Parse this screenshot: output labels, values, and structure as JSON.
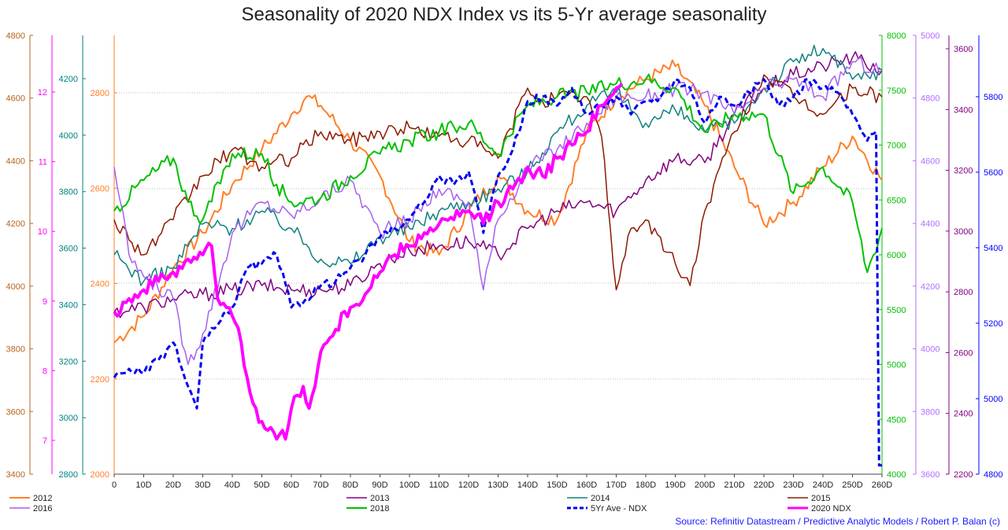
{
  "chart_data": {
    "type": "line",
    "title": "Seasonality of 2020 NDX Index vs its 5-Yr average seasonality",
    "source": "Source: Refinitiv Datastream / Predictive Analytic Models / Robert P. Balan (c)",
    "xlabel": "",
    "xlim": [
      0,
      260
    ],
    "x_ticks": [
      "0",
      "10D",
      "20D",
      "30D",
      "40D",
      "50D",
      "60D",
      "70D",
      "80D",
      "90D",
      "100D",
      "110D",
      "120D",
      "130D",
      "140D",
      "150D",
      "160D",
      "170D",
      "180D",
      "190D",
      "200D",
      "210D",
      "220D",
      "230D",
      "240D",
      "250D",
      "260D"
    ],
    "grid": "horizontal dotted",
    "legend_position": "bottom",
    "axes": [
      {
        "id": "a2012",
        "side": "left",
        "color": "#b5651d",
        "ticks": [
          "3400",
          "3600",
          "3800",
          "4000",
          "4200",
          "4400",
          "4600",
          "4800"
        ]
      },
      {
        "id": "a2016",
        "side": "left",
        "color": "#ff00ff",
        "ticks": [
          "7",
          "8",
          "9",
          "10",
          "11",
          "12"
        ]
      },
      {
        "id": "a2014",
        "side": "left",
        "color": "#008080",
        "ticks": [
          "2800",
          "3000",
          "3200",
          "3400",
          "3600",
          "3800",
          "4000",
          "4200"
        ]
      },
      {
        "id": "a2020",
        "side": "left",
        "color": "#ff7f27",
        "ticks": [
          "2000",
          "2200",
          "2400",
          "2600",
          "2800"
        ]
      },
      {
        "id": "a2018",
        "side": "right",
        "color": "#00c000",
        "ticks": [
          "4000",
          "4500",
          "5000",
          "5500",
          "6000",
          "6500",
          "7000",
          "7500",
          "8000"
        ]
      },
      {
        "id": "a2013",
        "side": "right",
        "color": "#b070ff",
        "ticks": [
          "3600",
          "3800",
          "4000",
          "4200",
          "4400",
          "4600",
          "4800",
          "5000"
        ]
      },
      {
        "id": "a2015",
        "side": "right",
        "color": "#800080",
        "ticks": [
          "2200",
          "2400",
          "2600",
          "2800",
          "3000",
          "3200",
          "3400",
          "3600"
        ]
      },
      {
        "id": "a5yr",
        "side": "right",
        "color": "#0000ff",
        "ticks": [
          "4800",
          "5000",
          "5200",
          "5400",
          "5600",
          "5800"
        ]
      }
    ],
    "series": [
      {
        "name": "2012",
        "color": "#ff7f27",
        "style": "solid",
        "width": 2,
        "x": [
          0,
          10,
          20,
          30,
          40,
          50,
          60,
          65,
          70,
          80,
          90,
          100,
          110,
          120,
          130,
          140,
          150,
          160,
          170,
          180,
          190,
          200,
          210,
          220,
          230,
          240,
          250,
          260
        ],
        "y": [
          0.3,
          0.36,
          0.47,
          0.55,
          0.66,
          0.74,
          0.82,
          0.86,
          0.84,
          0.76,
          0.68,
          0.53,
          0.5,
          0.6,
          0.68,
          0.6,
          0.58,
          0.78,
          0.86,
          0.9,
          0.93,
          0.84,
          0.7,
          0.57,
          0.62,
          0.7,
          0.77,
          0.67
        ]
      },
      {
        "name": "2013",
        "color": "#800080",
        "style": "solid",
        "width": 1.5,
        "x": [
          0,
          10,
          20,
          30,
          40,
          50,
          60,
          70,
          80,
          90,
          100,
          110,
          120,
          130,
          140,
          150,
          160,
          170,
          180,
          190,
          200,
          210,
          220,
          230,
          240,
          250,
          260
        ],
        "y": [
          0.37,
          0.38,
          0.4,
          0.41,
          0.42,
          0.43,
          0.42,
          0.42,
          0.43,
          0.48,
          0.51,
          0.52,
          0.53,
          0.5,
          0.56,
          0.6,
          0.62,
          0.6,
          0.67,
          0.72,
          0.71,
          0.82,
          0.88,
          0.91,
          0.93,
          0.95,
          0.92
        ]
      },
      {
        "name": "2014",
        "color": "#108080",
        "style": "solid",
        "width": 1.5,
        "x": [
          0,
          10,
          20,
          30,
          40,
          50,
          60,
          70,
          80,
          90,
          100,
          110,
          120,
          130,
          140,
          150,
          160,
          170,
          180,
          190,
          200,
          210,
          220,
          230,
          240,
          250,
          260
        ],
        "y": [
          0.5,
          0.44,
          0.47,
          0.57,
          0.56,
          0.6,
          0.56,
          0.49,
          0.48,
          0.54,
          0.56,
          0.6,
          0.62,
          0.65,
          0.69,
          0.78,
          0.84,
          0.87,
          0.8,
          0.83,
          0.78,
          0.8,
          0.88,
          0.94,
          0.97,
          0.9,
          0.92
        ]
      },
      {
        "name": "2015",
        "color": "#8b1a00",
        "style": "solid",
        "width": 1.5,
        "x": [
          0,
          10,
          20,
          30,
          40,
          50,
          60,
          70,
          80,
          90,
          100,
          110,
          120,
          130,
          140,
          145,
          150,
          160,
          165,
          170,
          175,
          180,
          190,
          195,
          200,
          210,
          220,
          230,
          240,
          250,
          260
        ],
        "y": [
          0.58,
          0.5,
          0.58,
          0.68,
          0.74,
          0.7,
          0.72,
          0.78,
          0.76,
          0.78,
          0.79,
          0.77,
          0.76,
          0.72,
          0.88,
          0.85,
          0.86,
          0.86,
          0.77,
          0.42,
          0.56,
          0.58,
          0.48,
          0.43,
          0.6,
          0.78,
          0.91,
          0.86,
          0.82,
          0.88,
          0.86
        ]
      },
      {
        "name": "2016",
        "color": "#a560f0",
        "style": "solid",
        "width": 1.5,
        "x": [
          0,
          5,
          10,
          20,
          25,
          30,
          40,
          50,
          60,
          70,
          80,
          90,
          100,
          110,
          120,
          125,
          130,
          140,
          150,
          160,
          170,
          180,
          190,
          200,
          210,
          220,
          230,
          240,
          250,
          260
        ],
        "y": [
          0.7,
          0.5,
          0.45,
          0.4,
          0.25,
          0.32,
          0.55,
          0.62,
          0.59,
          0.63,
          0.67,
          0.55,
          0.58,
          0.65,
          0.62,
          0.42,
          0.58,
          0.7,
          0.74,
          0.8,
          0.86,
          0.86,
          0.88,
          0.87,
          0.82,
          0.88,
          0.9,
          0.86,
          0.94,
          0.92
        ]
      },
      {
        "name": "2018",
        "color": "#00c000",
        "style": "solid",
        "width": 2,
        "x": [
          0,
          10,
          20,
          25,
          30,
          40,
          50,
          55,
          60,
          70,
          80,
          90,
          100,
          110,
          120,
          130,
          140,
          150,
          160,
          170,
          180,
          190,
          200,
          210,
          220,
          230,
          240,
          250,
          255,
          260
        ],
        "y": [
          0.6,
          0.67,
          0.72,
          0.62,
          0.58,
          0.73,
          0.73,
          0.66,
          0.62,
          0.63,
          0.68,
          0.73,
          0.76,
          0.78,
          0.8,
          0.73,
          0.84,
          0.86,
          0.87,
          0.89,
          0.9,
          0.88,
          0.78,
          0.82,
          0.82,
          0.64,
          0.7,
          0.62,
          0.46,
          0.56
        ]
      },
      {
        "name": "5Yr Ave - NDX",
        "color": "#0000ee",
        "style": "dashed",
        "width": 3,
        "x": [
          0,
          5,
          10,
          15,
          20,
          25,
          28,
          30,
          35,
          40,
          45,
          50,
          55,
          60,
          65,
          70,
          75,
          80,
          85,
          90,
          95,
          100,
          105,
          110,
          115,
          120,
          125,
          130,
          135,
          140,
          145,
          150,
          155,
          160,
          165,
          170,
          175,
          180,
          185,
          190,
          195,
          200,
          205,
          210,
          215,
          220,
          225,
          230,
          235,
          240,
          245,
          250,
          255,
          258,
          259,
          260
        ],
        "y": [
          0.22,
          0.24,
          0.23,
          0.26,
          0.3,
          0.2,
          0.15,
          0.3,
          0.34,
          0.38,
          0.47,
          0.48,
          0.5,
          0.38,
          0.4,
          0.43,
          0.44,
          0.47,
          0.5,
          0.54,
          0.56,
          0.58,
          0.62,
          0.68,
          0.66,
          0.69,
          0.55,
          0.68,
          0.74,
          0.85,
          0.86,
          0.84,
          0.88,
          0.82,
          0.84,
          0.86,
          0.82,
          0.85,
          0.86,
          0.9,
          0.88,
          0.8,
          0.86,
          0.84,
          0.87,
          0.9,
          0.84,
          0.86,
          0.9,
          0.88,
          0.87,
          0.82,
          0.76,
          0.78,
          0.02,
          0.02
        ]
      },
      {
        "name": "2020 NDX",
        "color": "#ff00ff",
        "style": "solid",
        "width": 4,
        "x": [
          0,
          5,
          10,
          15,
          20,
          25,
          30,
          33,
          35,
          38,
          40,
          43,
          45,
          48,
          50,
          52,
          55,
          57,
          58,
          60,
          62,
          64,
          66,
          68,
          70,
          72,
          75,
          80,
          85,
          90,
          95,
          100,
          105,
          110,
          115,
          120,
          125,
          130,
          135,
          140,
          145,
          150,
          155,
          160,
          162,
          165,
          168,
          170,
          172
        ],
        "y": [
          0.37,
          0.4,
          0.42,
          0.44,
          0.46,
          0.49,
          0.5,
          0.52,
          0.4,
          0.38,
          0.36,
          0.3,
          0.22,
          0.15,
          0.12,
          0.1,
          0.08,
          0.1,
          0.08,
          0.15,
          0.18,
          0.2,
          0.15,
          0.2,
          0.28,
          0.3,
          0.33,
          0.38,
          0.41,
          0.46,
          0.5,
          0.52,
          0.55,
          0.57,
          0.58,
          0.6,
          0.57,
          0.62,
          0.65,
          0.7,
          0.68,
          0.72,
          0.75,
          0.78,
          0.82,
          0.84,
          0.86,
          0.88,
          0.89
        ]
      }
    ]
  }
}
